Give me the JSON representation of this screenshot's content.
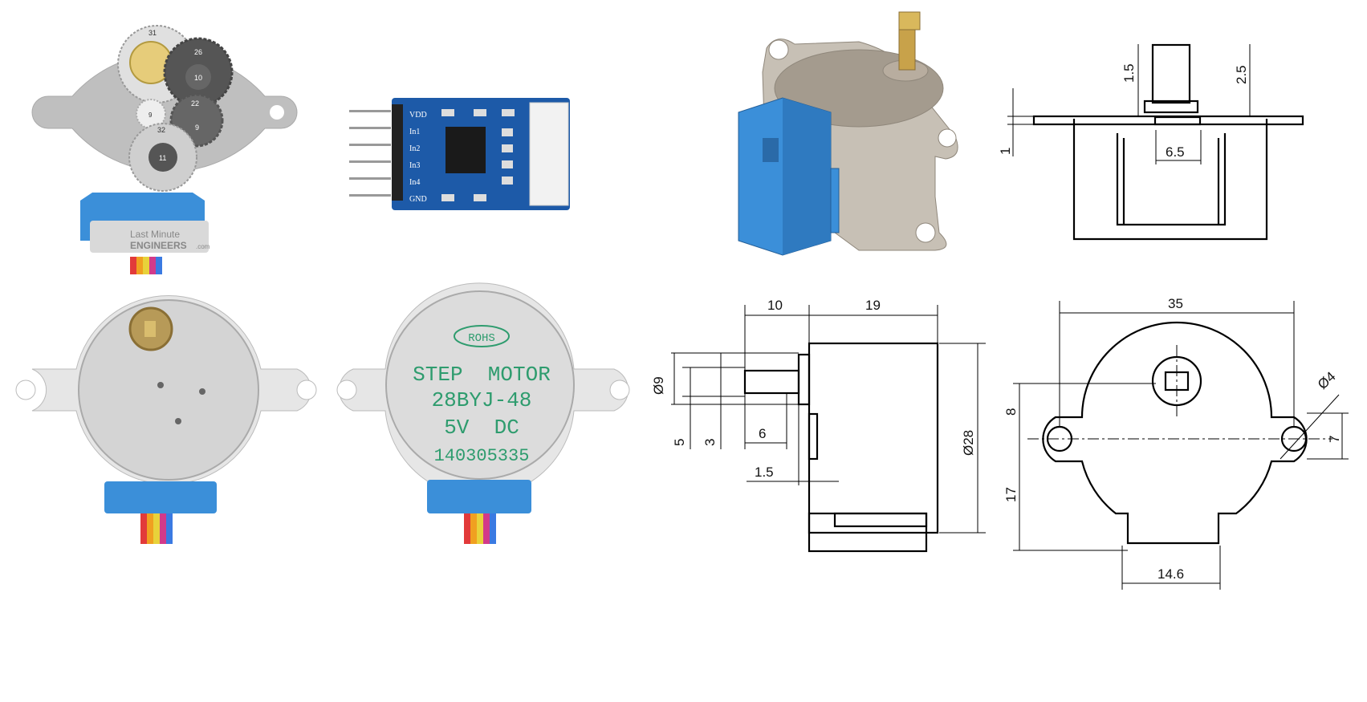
{
  "gear_view": {
    "gear_numbers": [
      "31",
      "26",
      "10",
      "9",
      "22",
      "32",
      "9",
      "11"
    ],
    "watermark_line1": "Last Minute",
    "watermark_line2": "ENGINEERS",
    "watermark_suffix": ".com"
  },
  "driver_board": {
    "pins": [
      "VDD",
      "In1",
      "In2",
      "In3",
      "In4",
      "GND"
    ]
  },
  "motor_label": {
    "badge": "ROHS",
    "line1": "STEP  MOTOR",
    "line2": "28BYJ-48",
    "line3": "5V  DC",
    "serial": "140305335"
  },
  "top_view": {
    "dims": [
      "1.5",
      "2.5",
      "1",
      "6.5"
    ]
  },
  "side_view": {
    "dims": [
      "10",
      "19",
      "Ø9",
      "5",
      "3",
      "6",
      "1.5",
      "Ø28"
    ]
  },
  "front_view": {
    "dims": [
      "35",
      "Ø4",
      "8",
      "7",
      "17",
      "14.6"
    ]
  },
  "colors": {
    "board_blue": "#1d5aa8",
    "motor_blue": "#3b8fd9",
    "shaft_brass": "#c8a24a",
    "body_gray": "#bdbdbd",
    "cable": [
      "#e23a3a",
      "#f0a020",
      "#e8d23a",
      "#d23a8a",
      "#3a7ae2"
    ]
  }
}
